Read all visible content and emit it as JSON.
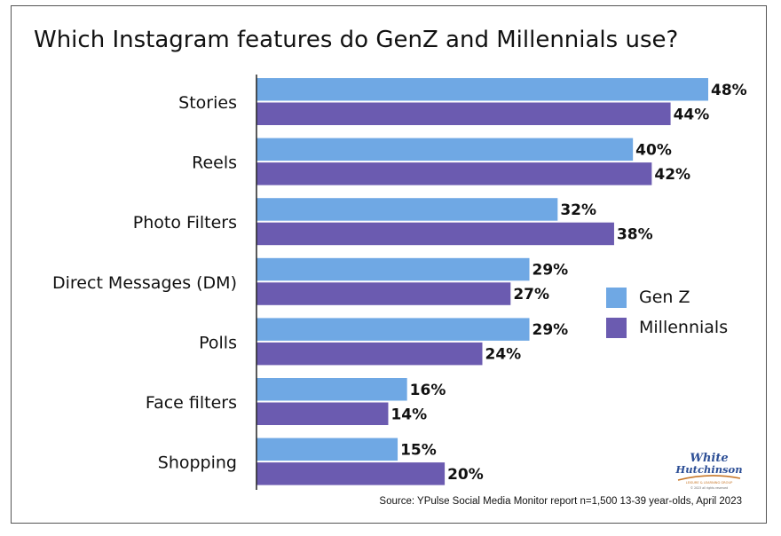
{
  "chart_data": {
    "type": "bar",
    "orientation": "horizontal",
    "title": "Which Instagram features do GenZ and Millennials use?",
    "categories": [
      "Stories",
      "Reels",
      "Photo Filters",
      "Direct Messages (DM)",
      "Polls",
      "Face filters",
      "Shopping"
    ],
    "series": [
      {
        "name": "Gen Z",
        "values": [
          48,
          40,
          32,
          29,
          29,
          16,
          15
        ],
        "labels": [
          "48%",
          "40%",
          "32%",
          "29%",
          "29%",
          "16%",
          "15%"
        ],
        "color": "#6fa8e4"
      },
      {
        "name": "Millennials",
        "values": [
          44,
          42,
          38,
          27,
          24,
          14,
          20
        ],
        "labels": [
          "44%",
          "42%",
          "38%",
          "27%",
          "24%",
          "14%",
          "20%"
        ],
        "color": "#6b5bb0"
      }
    ],
    "xlim": [
      0,
      48
    ],
    "grid": false,
    "legend_position": "right"
  },
  "source": "Source: YPulse Social Media Monitor report n=1,500 13-39 year-olds, April 2023",
  "logo": {
    "line1": "White",
    "line2": "Hutchinson",
    "tagline": "LEISURE & LEARNING GROUP",
    "copyright": "© 2023 all rights reserved"
  }
}
